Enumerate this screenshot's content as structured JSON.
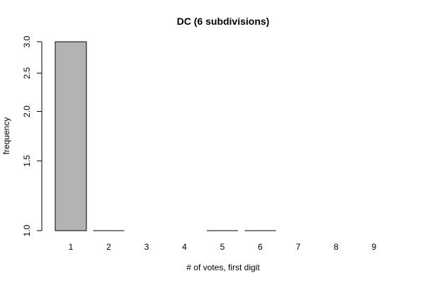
{
  "chart_data": {
    "type": "bar",
    "title": "DC (6 subdivisions)",
    "xlabel": "# of votes, first digit",
    "ylabel": "frequency",
    "log_y": true,
    "ylim": [
      1.0,
      3.0
    ],
    "yticks": [
      1.0,
      1.5,
      2.0,
      2.5,
      3.0
    ],
    "ytick_labels": [
      "1.0",
      "1.5",
      "2.0",
      "2.5",
      "3.0"
    ],
    "categories": [
      "1",
      "2",
      "3",
      "4",
      "5",
      "6",
      "7",
      "8",
      "9"
    ],
    "values": [
      3,
      1,
      0,
      0,
      1,
      1,
      0,
      0,
      0
    ],
    "bar_color": "#b3b3b3",
    "grid": false,
    "legend": "none"
  }
}
